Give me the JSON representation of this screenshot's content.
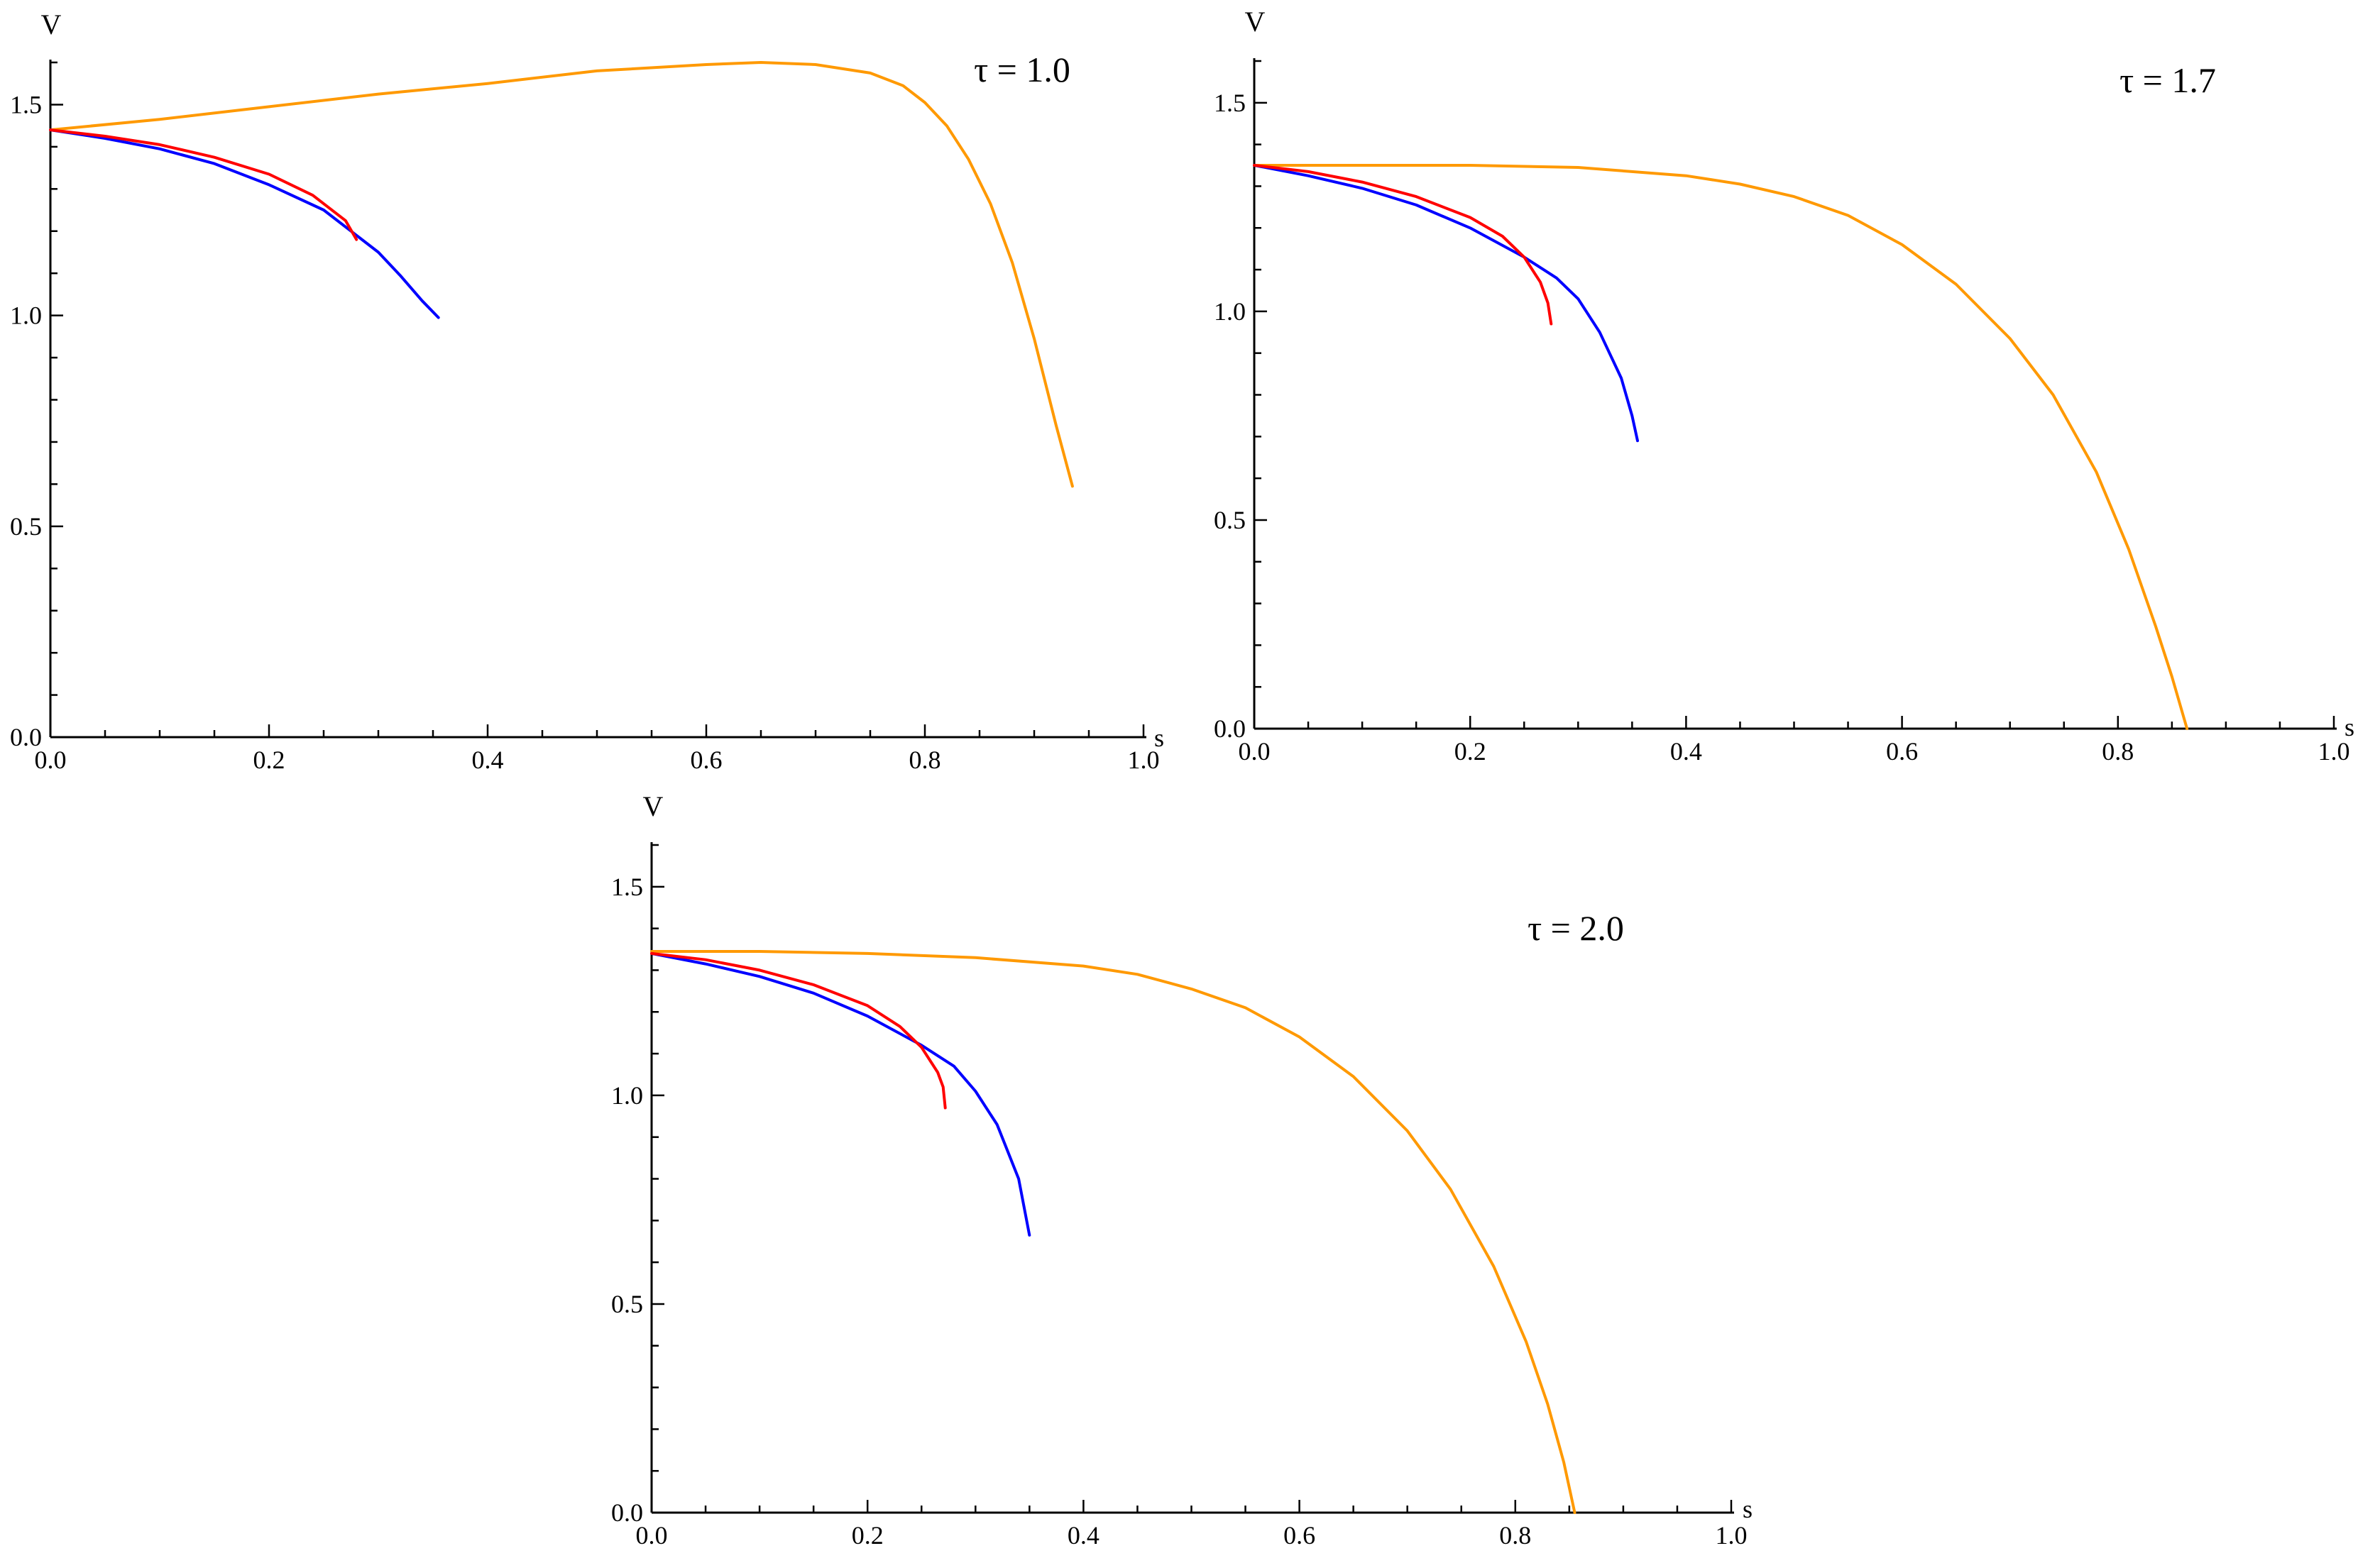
{
  "chart_data": [
    {
      "type": "line",
      "title": "",
      "annotation": "τ = 1.0",
      "xlabel": "s",
      "ylabel": "V",
      "xlim": [
        0,
        1.0
      ],
      "ylim": [
        0,
        1.6
      ],
      "xticks": [
        "0.0",
        "0.2",
        "0.4",
        "0.6",
        "0.8",
        "1.0"
      ],
      "yticks": [
        "0.0",
        "0.5",
        "1.0",
        "1.5"
      ],
      "series": [
        {
          "color": "#0000ff",
          "points": [
            [
              0,
              1.44
            ],
            [
              0.05,
              1.42
            ],
            [
              0.1,
              1.395
            ],
            [
              0.15,
              1.36
            ],
            [
              0.2,
              1.31
            ],
            [
              0.25,
              1.25
            ],
            [
              0.28,
              1.19
            ],
            [
              0.3,
              1.15
            ],
            [
              0.32,
              1.095
            ],
            [
              0.34,
              1.035
            ],
            [
              0.355,
              0.995
            ]
          ]
        },
        {
          "color": "#ff0000",
          "points": [
            [
              0,
              1.44
            ],
            [
              0.05,
              1.425
            ],
            [
              0.1,
              1.405
            ],
            [
              0.15,
              1.375
            ],
            [
              0.2,
              1.335
            ],
            [
              0.24,
              1.285
            ],
            [
              0.27,
              1.225
            ],
            [
              0.28,
              1.18
            ]
          ]
        },
        {
          "color": "#ff9900",
          "points": [
            [
              0,
              1.44
            ],
            [
              0.1,
              1.465
            ],
            [
              0.2,
              1.495
            ],
            [
              0.3,
              1.525
            ],
            [
              0.4,
              1.55
            ],
            [
              0.5,
              1.58
            ],
            [
              0.6,
              1.595
            ],
            [
              0.65,
              1.6
            ],
            [
              0.7,
              1.595
            ],
            [
              0.75,
              1.575
            ],
            [
              0.78,
              1.545
            ],
            [
              0.8,
              1.505
            ],
            [
              0.82,
              1.45
            ],
            [
              0.84,
              1.37
            ],
            [
              0.86,
              1.265
            ],
            [
              0.88,
              1.125
            ],
            [
              0.9,
              0.945
            ],
            [
              0.92,
              0.74
            ],
            [
              0.935,
              0.595
            ]
          ]
        }
      ]
    },
    {
      "type": "line",
      "title": "",
      "annotation": "τ = 1.7",
      "xlabel": "s",
      "ylabel": "V",
      "xlim": [
        0,
        1.0
      ],
      "ylim": [
        0,
        1.6
      ],
      "xticks": [
        "0.0",
        "0.2",
        "0.4",
        "0.6",
        "0.8",
        "1.0"
      ],
      "yticks": [
        "0.0",
        "0.5",
        "1.0",
        "1.5"
      ],
      "series": [
        {
          "color": "#0000ff",
          "points": [
            [
              0,
              1.35
            ],
            [
              0.05,
              1.325
            ],
            [
              0.1,
              1.295
            ],
            [
              0.15,
              1.255
            ],
            [
              0.2,
              1.2
            ],
            [
              0.25,
              1.13
            ],
            [
              0.28,
              1.08
            ],
            [
              0.3,
              1.03
            ],
            [
              0.32,
              0.95
            ],
            [
              0.34,
              0.84
            ],
            [
              0.35,
              0.75
            ],
            [
              0.355,
              0.69
            ]
          ]
        },
        {
          "color": "#ff0000",
          "points": [
            [
              0,
              1.35
            ],
            [
              0.05,
              1.335
            ],
            [
              0.1,
              1.31
            ],
            [
              0.15,
              1.275
            ],
            [
              0.2,
              1.225
            ],
            [
              0.23,
              1.18
            ],
            [
              0.25,
              1.13
            ],
            [
              0.265,
              1.07
            ],
            [
              0.272,
              1.02
            ],
            [
              0.275,
              0.97
            ]
          ]
        },
        {
          "color": "#ff9900",
          "points": [
            [
              0,
              1.35
            ],
            [
              0.1,
              1.35
            ],
            [
              0.2,
              1.35
            ],
            [
              0.3,
              1.345
            ],
            [
              0.4,
              1.325
            ],
            [
              0.45,
              1.305
            ],
            [
              0.5,
              1.275
            ],
            [
              0.55,
              1.23
            ],
            [
              0.6,
              1.16
            ],
            [
              0.65,
              1.065
            ],
            [
              0.7,
              0.935
            ],
            [
              0.74,
              0.8
            ],
            [
              0.78,
              0.615
            ],
            [
              0.81,
              0.43
            ],
            [
              0.835,
              0.245
            ],
            [
              0.85,
              0.125
            ],
            [
              0.864,
              0.0
            ]
          ]
        }
      ]
    },
    {
      "type": "line",
      "title": "",
      "annotation": "τ = 2.0",
      "xlabel": "s",
      "ylabel": "V",
      "xlim": [
        0,
        1.0
      ],
      "ylim": [
        0,
        1.6
      ],
      "xticks": [
        "0.0",
        "0.2",
        "0.4",
        "0.6",
        "0.8",
        "1.0"
      ],
      "yticks": [
        "0.0",
        "0.5",
        "1.0",
        "1.5"
      ],
      "series": [
        {
          "color": "#0000ff",
          "points": [
            [
              0,
              1.34
            ],
            [
              0.05,
              1.315
            ],
            [
              0.1,
              1.285
            ],
            [
              0.15,
              1.245
            ],
            [
              0.2,
              1.19
            ],
            [
              0.25,
              1.12
            ],
            [
              0.28,
              1.07
            ],
            [
              0.3,
              1.01
            ],
            [
              0.32,
              0.93
            ],
            [
              0.34,
              0.8
            ],
            [
              0.35,
              0.665
            ]
          ]
        },
        {
          "color": "#ff0000",
          "points": [
            [
              0,
              1.34
            ],
            [
              0.05,
              1.325
            ],
            [
              0.1,
              1.3
            ],
            [
              0.15,
              1.265
            ],
            [
              0.2,
              1.215
            ],
            [
              0.23,
              1.165
            ],
            [
              0.25,
              1.115
            ],
            [
              0.265,
              1.055
            ],
            [
              0.27,
              1.02
            ],
            [
              0.272,
              0.97
            ]
          ]
        },
        {
          "color": "#ff9900",
          "points": [
            [
              0,
              1.345
            ],
            [
              0.1,
              1.345
            ],
            [
              0.2,
              1.34
            ],
            [
              0.3,
              1.33
            ],
            [
              0.4,
              1.31
            ],
            [
              0.45,
              1.29
            ],
            [
              0.5,
              1.255
            ],
            [
              0.55,
              1.21
            ],
            [
              0.6,
              1.14
            ],
            [
              0.65,
              1.045
            ],
            [
              0.7,
              0.915
            ],
            [
              0.74,
              0.775
            ],
            [
              0.78,
              0.59
            ],
            [
              0.81,
              0.41
            ],
            [
              0.83,
              0.26
            ],
            [
              0.845,
              0.12
            ],
            [
              0.855,
              0.0
            ]
          ]
        }
      ]
    }
  ]
}
